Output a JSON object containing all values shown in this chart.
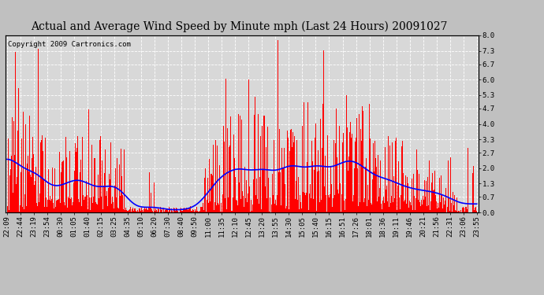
{
  "title": "Actual and Average Wind Speed by Minute mph (Last 24 Hours) 20091027",
  "copyright": "Copyright 2009 Cartronics.com",
  "ylabel_right": [
    "8.0",
    "7.3",
    "6.7",
    "6.0",
    "5.3",
    "4.7",
    "4.0",
    "3.3",
    "2.7",
    "2.0",
    "1.3",
    "0.7",
    "0.0"
  ],
  "yticks": [
    8.0,
    7.3,
    6.7,
    6.0,
    5.3,
    4.7,
    4.0,
    3.3,
    2.7,
    2.0,
    1.3,
    0.7,
    0.0
  ],
  "ylim": [
    0.0,
    8.0
  ],
  "bar_color": "#FF0000",
  "line_color": "#0000FF",
  "fig_facecolor": "#C0C0C0",
  "plot_facecolor": "#D8D8D8",
  "grid_color": "#FFFFFF",
  "title_fontsize": 10,
  "copyright_fontsize": 6.5,
  "tick_fontsize": 6.5,
  "xtick_labels": [
    "22:09",
    "22:44",
    "23:19",
    "23:54",
    "00:30",
    "01:05",
    "01:40",
    "02:15",
    "03:25",
    "04:35",
    "05:10",
    "06:20",
    "07:30",
    "08:40",
    "09:50",
    "11:00",
    "11:35",
    "12:10",
    "12:45",
    "13:20",
    "13:55",
    "14:30",
    "15:05",
    "15:40",
    "16:15",
    "16:51",
    "17:26",
    "18:01",
    "18:36",
    "19:11",
    "19:46",
    "20:21",
    "21:56",
    "22:31",
    "23:06",
    "23:55"
  ],
  "num_points": 1440,
  "seed": 42
}
